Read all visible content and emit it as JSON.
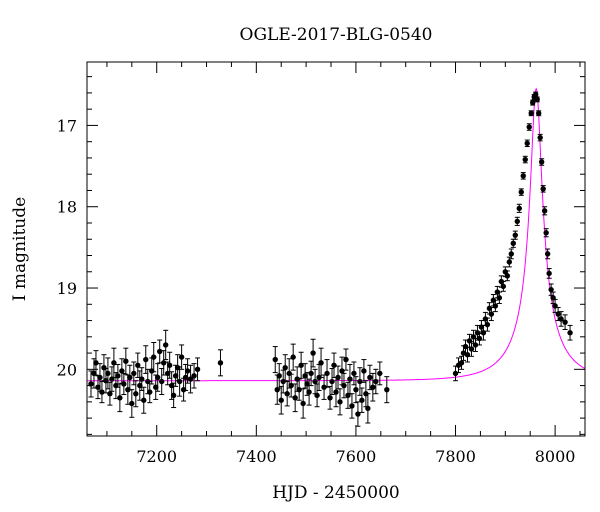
{
  "chart_data": {
    "type": "scatter",
    "title": "OGLE-2017-BLG-0540",
    "xlabel": "HJD - 2450000",
    "ylabel": "I magnitude",
    "xlim": [
      7060,
      8060
    ],
    "ylim": [
      20.82,
      16.22
    ],
    "y_inverted": true,
    "x_ticks": [
      7200,
      7400,
      7600,
      7800,
      8000
    ],
    "x_tick_labels": [
      "7200",
      "7400",
      "7600",
      "7800",
      "8000"
    ],
    "y_ticks": [
      17,
      18,
      19,
      20
    ],
    "y_tick_labels": [
      "17",
      "18",
      "19",
      "20"
    ],
    "grid": false,
    "colors": {
      "data": "#000000",
      "model": "#ff00ff"
    },
    "model": {
      "name": "",
      "t0": 7962,
      "tE": 90,
      "u0": 0.13,
      "baseline_mag": 20.14,
      "mag_range": [
        16.55,
        20.14
      ]
    },
    "series": [
      {
        "name": "",
        "points": [
          {
            "x": 7068,
            "y": 20.18,
            "e": 0.16
          },
          {
            "x": 7074,
            "y": 20.05,
            "e": 0.18
          },
          {
            "x": 7078,
            "y": 19.92,
            "e": 0.15
          },
          {
            "x": 7082,
            "y": 20.22,
            "e": 0.14
          },
          {
            "x": 7086,
            "y": 20.1,
            "e": 0.17
          },
          {
            "x": 7090,
            "y": 20.28,
            "e": 0.13
          },
          {
            "x": 7094,
            "y": 19.98,
            "e": 0.16
          },
          {
            "x": 7098,
            "y": 20.14,
            "e": 0.15
          },
          {
            "x": 7102,
            "y": 20.05,
            "e": 0.19
          },
          {
            "x": 7106,
            "y": 20.3,
            "e": 0.14
          },
          {
            "x": 7110,
            "y": 20.12,
            "e": 0.15
          },
          {
            "x": 7114,
            "y": 19.92,
            "e": 0.18
          },
          {
            "x": 7118,
            "y": 20.2,
            "e": 0.16
          },
          {
            "x": 7122,
            "y": 20.08,
            "e": 0.14
          },
          {
            "x": 7126,
            "y": 20.35,
            "e": 0.17
          },
          {
            "x": 7130,
            "y": 20.02,
            "e": 0.15
          },
          {
            "x": 7134,
            "y": 20.18,
            "e": 0.13
          },
          {
            "x": 7138,
            "y": 19.9,
            "e": 0.16
          },
          {
            "x": 7142,
            "y": 20.25,
            "e": 0.18
          },
          {
            "x": 7146,
            "y": 20.1,
            "e": 0.15
          },
          {
            "x": 7150,
            "y": 20.42,
            "e": 0.17
          },
          {
            "x": 7154,
            "y": 20.05,
            "e": 0.14
          },
          {
            "x": 7158,
            "y": 20.3,
            "e": 0.16
          },
          {
            "x": 7162,
            "y": 19.95,
            "e": 0.15
          },
          {
            "x": 7166,
            "y": 20.2,
            "e": 0.18
          },
          {
            "x": 7170,
            "y": 20.12,
            "e": 0.14
          },
          {
            "x": 7174,
            "y": 20.38,
            "e": 0.16
          },
          {
            "x": 7178,
            "y": 19.88,
            "e": 0.17
          },
          {
            "x": 7182,
            "y": 20.15,
            "e": 0.15
          },
          {
            "x": 7186,
            "y": 20.28,
            "e": 0.13
          },
          {
            "x": 7190,
            "y": 20.02,
            "e": 0.16
          },
          {
            "x": 7194,
            "y": 19.85,
            "e": 0.18
          },
          {
            "x": 7198,
            "y": 20.22,
            "e": 0.15
          },
          {
            "x": 7202,
            "y": 20.1,
            "e": 0.17
          },
          {
            "x": 7206,
            "y": 19.78,
            "e": 0.14
          },
          {
            "x": 7210,
            "y": 20.15,
            "e": 0.16
          },
          {
            "x": 7214,
            "y": 19.92,
            "e": 0.15
          },
          {
            "x": 7218,
            "y": 19.7,
            "e": 0.18
          },
          {
            "x": 7222,
            "y": 20.05,
            "e": 0.14
          },
          {
            "x": 7226,
            "y": 19.95,
            "e": 0.16
          },
          {
            "x": 7230,
            "y": 20.2,
            "e": 0.17
          },
          {
            "x": 7234,
            "y": 20.32,
            "e": 0.15
          },
          {
            "x": 7238,
            "y": 20.08,
            "e": 0.13
          },
          {
            "x": 7242,
            "y": 19.98,
            "e": 0.16
          },
          {
            "x": 7246,
            "y": 20.15,
            "e": 0.18
          },
          {
            "x": 7250,
            "y": 19.85,
            "e": 0.15
          },
          {
            "x": 7254,
            "y": 20.25,
            "e": 0.14
          },
          {
            "x": 7258,
            "y": 20.1,
            "e": 0.16
          },
          {
            "x": 7262,
            "y": 20.02,
            "e": 0.15
          },
          {
            "x": 7268,
            "y": 20.12,
            "e": 0.17
          },
          {
            "x": 7275,
            "y": 20.08,
            "e": 0.15
          },
          {
            "x": 7282,
            "y": 20.0,
            "e": 0.14
          },
          {
            "x": 7328,
            "y": 19.92,
            "e": 0.16
          },
          {
            "x": 7438,
            "y": 19.88,
            "e": 0.16
          },
          {
            "x": 7442,
            "y": 20.25,
            "e": 0.18
          },
          {
            "x": 7446,
            "y": 20.08,
            "e": 0.15
          },
          {
            "x": 7450,
            "y": 20.38,
            "e": 0.17
          },
          {
            "x": 7454,
            "y": 20.15,
            "e": 0.14
          },
          {
            "x": 7458,
            "y": 19.98,
            "e": 0.16
          },
          {
            "x": 7462,
            "y": 20.3,
            "e": 0.15
          },
          {
            "x": 7466,
            "y": 20.05,
            "e": 0.18
          },
          {
            "x": 7470,
            "y": 20.2,
            "e": 0.14
          },
          {
            "x": 7474,
            "y": 19.85,
            "e": 0.16
          },
          {
            "x": 7478,
            "y": 20.35,
            "e": 0.17
          },
          {
            "x": 7482,
            "y": 20.12,
            "e": 0.15
          },
          {
            "x": 7486,
            "y": 20.25,
            "e": 0.13
          },
          {
            "x": 7490,
            "y": 19.95,
            "e": 0.16
          },
          {
            "x": 7494,
            "y": 20.42,
            "e": 0.18
          },
          {
            "x": 7498,
            "y": 20.08,
            "e": 0.15
          },
          {
            "x": 7502,
            "y": 20.18,
            "e": 0.14
          },
          {
            "x": 7506,
            "y": 20.28,
            "e": 0.16
          },
          {
            "x": 7510,
            "y": 20.05,
            "e": 0.15
          },
          {
            "x": 7514,
            "y": 19.8,
            "e": 0.17
          },
          {
            "x": 7518,
            "y": 20.15,
            "e": 0.15
          },
          {
            "x": 7522,
            "y": 20.32,
            "e": 0.14
          },
          {
            "x": 7526,
            "y": 20.1,
            "e": 0.16
          },
          {
            "x": 7530,
            "y": 19.92,
            "e": 0.18
          },
          {
            "x": 7536,
            "y": 20.22,
            "e": 0.15
          },
          {
            "x": 7542,
            "y": 20.05,
            "e": 0.17
          },
          {
            "x": 7548,
            "y": 20.35,
            "e": 0.14
          },
          {
            "x": 7552,
            "y": 20.15,
            "e": 0.16
          },
          {
            "x": 7556,
            "y": 19.95,
            "e": 0.15
          },
          {
            "x": 7560,
            "y": 20.28,
            "e": 0.18
          },
          {
            "x": 7564,
            "y": 20.1,
            "e": 0.14
          },
          {
            "x": 7568,
            "y": 20.4,
            "e": 0.16
          },
          {
            "x": 7572,
            "y": 20.02,
            "e": 0.17
          },
          {
            "x": 7576,
            "y": 20.2,
            "e": 0.15
          },
          {
            "x": 7580,
            "y": 19.88,
            "e": 0.13
          },
          {
            "x": 7584,
            "y": 20.32,
            "e": 0.16
          },
          {
            "x": 7588,
            "y": 20.12,
            "e": 0.18
          },
          {
            "x": 7592,
            "y": 20.45,
            "e": 0.15
          },
          {
            "x": 7596,
            "y": 20.05,
            "e": 0.14
          },
          {
            "x": 7600,
            "y": 20.25,
            "e": 0.16
          },
          {
            "x": 7604,
            "y": 20.55,
            "e": 0.15
          },
          {
            "x": 7608,
            "y": 20.15,
            "e": 0.17
          },
          {
            "x": 7612,
            "y": 20.38,
            "e": 0.15
          },
          {
            "x": 7616,
            "y": 20.02,
            "e": 0.14
          },
          {
            "x": 7620,
            "y": 20.3,
            "e": 0.16
          },
          {
            "x": 7624,
            "y": 20.48,
            "e": 0.18
          },
          {
            "x": 7628,
            "y": 20.1,
            "e": 0.15
          },
          {
            "x": 7634,
            "y": 20.22,
            "e": 0.17
          },
          {
            "x": 7640,
            "y": 20.15,
            "e": 0.15
          },
          {
            "x": 7648,
            "y": 20.05,
            "e": 0.14
          },
          {
            "x": 7662,
            "y": 20.25,
            "e": 0.16
          },
          {
            "x": 7800,
            "y": 20.05,
            "e": 0.09
          },
          {
            "x": 7806,
            "y": 19.95,
            "e": 0.09
          },
          {
            "x": 7812,
            "y": 19.92,
            "e": 0.08
          },
          {
            "x": 7816,
            "y": 19.8,
            "e": 0.09
          },
          {
            "x": 7820,
            "y": 19.72,
            "e": 0.08
          },
          {
            "x": 7824,
            "y": 19.82,
            "e": 0.09
          },
          {
            "x": 7828,
            "y": 19.65,
            "e": 0.08
          },
          {
            "x": 7832,
            "y": 19.75,
            "e": 0.09
          },
          {
            "x": 7836,
            "y": 19.6,
            "e": 0.08
          },
          {
            "x": 7840,
            "y": 19.7,
            "e": 0.08
          },
          {
            "x": 7844,
            "y": 19.55,
            "e": 0.09
          },
          {
            "x": 7848,
            "y": 19.62,
            "e": 0.08
          },
          {
            "x": 7852,
            "y": 19.48,
            "e": 0.08
          },
          {
            "x": 7856,
            "y": 19.55,
            "e": 0.09
          },
          {
            "x": 7860,
            "y": 19.38,
            "e": 0.08
          },
          {
            "x": 7864,
            "y": 19.45,
            "e": 0.08
          },
          {
            "x": 7868,
            "y": 19.25,
            "e": 0.07
          },
          {
            "x": 7872,
            "y": 19.32,
            "e": 0.08
          },
          {
            "x": 7876,
            "y": 19.15,
            "e": 0.07
          },
          {
            "x": 7880,
            "y": 19.22,
            "e": 0.07
          },
          {
            "x": 7884,
            "y": 19.05,
            "e": 0.07
          },
          {
            "x": 7888,
            "y": 19.12,
            "e": 0.07
          },
          {
            "x": 7892,
            "y": 18.92,
            "e": 0.07
          },
          {
            "x": 7896,
            "y": 18.98,
            "e": 0.06
          },
          {
            "x": 7900,
            "y": 18.8,
            "e": 0.06
          },
          {
            "x": 7904,
            "y": 18.85,
            "e": 0.06
          },
          {
            "x": 7908,
            "y": 18.68,
            "e": 0.06
          },
          {
            "x": 7912,
            "y": 18.58,
            "e": 0.06
          },
          {
            "x": 7916,
            "y": 18.45,
            "e": 0.05
          },
          {
            "x": 7920,
            "y": 18.35,
            "e": 0.05
          },
          {
            "x": 7924,
            "y": 18.18,
            "e": 0.05
          },
          {
            "x": 7928,
            "y": 18.02,
            "e": 0.05
          },
          {
            "x": 7932,
            "y": 17.82,
            "e": 0.04
          },
          {
            "x": 7936,
            "y": 17.62,
            "e": 0.04
          },
          {
            "x": 7940,
            "y": 17.42,
            "e": 0.04
          },
          {
            "x": 7944,
            "y": 17.22,
            "e": 0.04
          },
          {
            "x": 7948,
            "y": 17.02,
            "e": 0.04
          },
          {
            "x": 7952,
            "y": 16.85,
            "e": 0.03
          },
          {
            "x": 7955,
            "y": 16.72,
            "e": 0.03
          },
          {
            "x": 7958,
            "y": 16.65,
            "e": 0.03
          },
          {
            "x": 7961,
            "y": 16.62,
            "e": 0.03
          },
          {
            "x": 7964,
            "y": 16.68,
            "e": 0.03
          },
          {
            "x": 7967,
            "y": 16.85,
            "e": 0.03
          },
          {
            "x": 7970,
            "y": 17.15,
            "e": 0.04
          },
          {
            "x": 7973,
            "y": 17.45,
            "e": 0.04
          },
          {
            "x": 7976,
            "y": 17.78,
            "e": 0.04
          },
          {
            "x": 7979,
            "y": 18.05,
            "e": 0.05
          },
          {
            "x": 7982,
            "y": 18.32,
            "e": 0.05
          },
          {
            "x": 7985,
            "y": 18.58,
            "e": 0.06
          },
          {
            "x": 7988,
            "y": 18.82,
            "e": 0.06
          },
          {
            "x": 7992,
            "y": 19.02,
            "e": 0.07
          },
          {
            "x": 7996,
            "y": 19.12,
            "e": 0.07
          },
          {
            "x": 8000,
            "y": 19.22,
            "e": 0.08
          },
          {
            "x": 8006,
            "y": 19.32,
            "e": 0.08
          },
          {
            "x": 8012,
            "y": 19.38,
            "e": 0.09
          },
          {
            "x": 8020,
            "y": 19.42,
            "e": 0.09
          },
          {
            "x": 8030,
            "y": 19.55,
            "e": 0.09
          }
        ]
      }
    ]
  }
}
